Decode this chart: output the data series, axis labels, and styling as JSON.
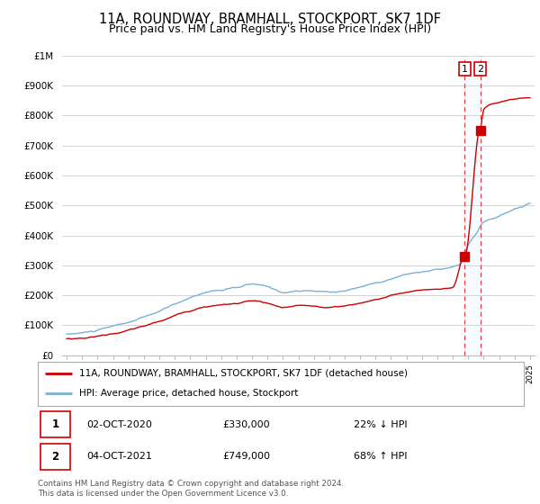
{
  "title": "11A, ROUNDWAY, BRAMHALL, STOCKPORT, SK7 1DF",
  "subtitle": "Price paid vs. HM Land Registry's House Price Index (HPI)",
  "title_fontsize": 10.5,
  "subtitle_fontsize": 9,
  "ylim": [
    0,
    1000000
  ],
  "yticks": [
    0,
    100000,
    200000,
    300000,
    400000,
    500000,
    600000,
    700000,
    800000,
    900000,
    1000000
  ],
  "ytick_labels": [
    "£0",
    "£100K",
    "£200K",
    "£300K",
    "£400K",
    "£500K",
    "£600K",
    "£700K",
    "£800K",
    "£900K",
    "£1M"
  ],
  "hpi_color": "#7bafd4",
  "price_color": "#cc0000",
  "dashed_line_color": "#dd4444",
  "shade_color": "#ddeeff",
  "grid_color": "#cccccc",
  "background_color": "#ffffff",
  "sale1_x": 2020.78,
  "sale1_price": 330000,
  "sale2_x": 2021.78,
  "sale2_price": 749000,
  "sale1_date": "02-OCT-2020",
  "sale1_amount": "£330,000",
  "sale1_hpi": "22% ↓ HPI",
  "sale2_date": "04-OCT-2021",
  "sale2_amount": "£749,000",
  "sale2_hpi": "68% ↑ HPI",
  "legend_line1": "11A, ROUNDWAY, BRAMHALL, STOCKPORT, SK7 1DF (detached house)",
  "legend_line2": "HPI: Average price, detached house, Stockport",
  "footer": "Contains HM Land Registry data © Crown copyright and database right 2024.\nThis data is licensed under the Open Government Licence v3.0."
}
